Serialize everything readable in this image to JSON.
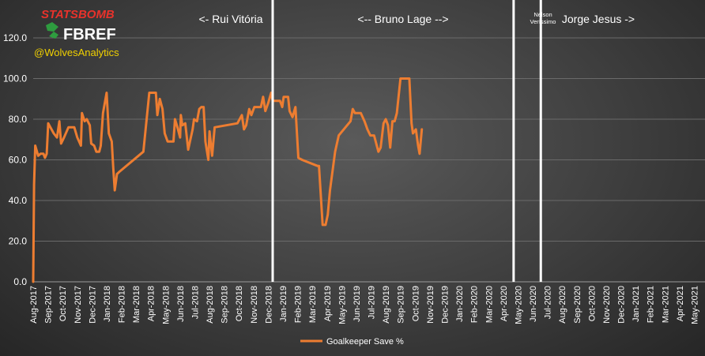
{
  "branding": {
    "statsbomb": "STATSBOMB",
    "fbref": "FBREF",
    "handle": "@WolvesAnalytics"
  },
  "colors": {
    "line": "#ed7d31",
    "grid": "#6a6a6a",
    "divider": "#ffffff",
    "handle": "#f0d000",
    "statsbomb": "#e8322b"
  },
  "chart_data": {
    "type": "line",
    "title": "",
    "xlabel": "",
    "ylabel": "",
    "ylim": [
      0,
      120
    ],
    "yticks": [
      "0.0",
      "20.0",
      "40.0",
      "60.0",
      "80.0",
      "100.0",
      "120.0"
    ],
    "grid": true,
    "legend": {
      "position": "bottom-center",
      "entries": [
        "Goalkeeper Save %"
      ]
    },
    "x_tick_labels": [
      "Aug-2017",
      "Sep-2017",
      "Oct-2017",
      "Nov-2017",
      "Dec-2017",
      "Jan-2018",
      "Feb-2018",
      "Mar-2018",
      "Apr-2018",
      "May-2018",
      "Jun-2018",
      "Jul-2018",
      "Aug-2018",
      "Sep-2018",
      "Oct-2018",
      "Nov-2018",
      "Dec-2018",
      "Jan-2019",
      "Feb-2019",
      "Mar-2019",
      "Apr-2019",
      "May-2019",
      "Jun-2019",
      "Jul-2019",
      "Aug-2019",
      "Sep-2019",
      "Oct-2019",
      "Nov-2019",
      "Dec-2019",
      "Jan-2020",
      "Feb-2020",
      "Mar-2020",
      "Apr-2020",
      "May-2020",
      "Jun-2020",
      "Jul-2020",
      "Aug-2020",
      "Sep-2020",
      "Oct-2020",
      "Nov-2020",
      "Dec-2020",
      "Jan-2021",
      "Feb-2021",
      "Mar-2021",
      "Apr-2021",
      "May-2021"
    ],
    "managers": [
      {
        "label": "<- Rui Vitória",
        "small": false
      },
      {
        "label": "<-- Bruno Lage -->",
        "small": false
      },
      {
        "label": "Nélson Veríssimo",
        "small": true
      },
      {
        "label": "Jorge Jesus ->",
        "small": false
      }
    ],
    "dividers": [
      16.3,
      32.7,
      34.55
    ],
    "series": [
      {
        "name": "Goalkeeper Save %",
        "points": [
          [
            0.0,
            0
          ],
          [
            0.06,
            48
          ],
          [
            0.14,
            67
          ],
          [
            0.34,
            62
          ],
          [
            0.5,
            63
          ],
          [
            0.7,
            63
          ],
          [
            0.8,
            61
          ],
          [
            0.92,
            63
          ],
          [
            1.02,
            78
          ],
          [
            1.4,
            73
          ],
          [
            1.62,
            71
          ],
          [
            1.78,
            79
          ],
          [
            1.9,
            68
          ],
          [
            2.1,
            71
          ],
          [
            2.4,
            76
          ],
          [
            2.8,
            76
          ],
          [
            3.0,
            71
          ],
          [
            3.25,
            67
          ],
          [
            3.32,
            83
          ],
          [
            3.5,
            79
          ],
          [
            3.65,
            80
          ],
          [
            3.85,
            77
          ],
          [
            3.95,
            68
          ],
          [
            4.15,
            67
          ],
          [
            4.3,
            64
          ],
          [
            4.5,
            64
          ],
          [
            4.6,
            67
          ],
          [
            4.75,
            83
          ],
          [
            5.0,
            93
          ],
          [
            5.15,
            73
          ],
          [
            5.35,
            69
          ],
          [
            5.45,
            56
          ],
          [
            5.55,
            45
          ],
          [
            5.7,
            53
          ],
          [
            5.85,
            54
          ],
          [
            7.5,
            64
          ],
          [
            7.9,
            93
          ],
          [
            8.35,
            93
          ],
          [
            8.45,
            82
          ],
          [
            8.62,
            90
          ],
          [
            8.8,
            85
          ],
          [
            8.95,
            73
          ],
          [
            9.15,
            69
          ],
          [
            9.55,
            69
          ],
          [
            9.65,
            80
          ],
          [
            9.82,
            76
          ],
          [
            10.0,
            71
          ],
          [
            10.05,
            82
          ],
          [
            10.15,
            77
          ],
          [
            10.35,
            78
          ],
          [
            10.55,
            65
          ],
          [
            10.85,
            75
          ],
          [
            10.95,
            80
          ],
          [
            11.15,
            79
          ],
          [
            11.3,
            85
          ],
          [
            11.45,
            86
          ],
          [
            11.6,
            86
          ],
          [
            11.72,
            69
          ],
          [
            11.92,
            60
          ],
          [
            12.0,
            74
          ],
          [
            12.18,
            62
          ],
          [
            12.35,
            76
          ],
          [
            13.9,
            78
          ],
          [
            14.2,
            82
          ],
          [
            14.35,
            75
          ],
          [
            14.5,
            77
          ],
          [
            14.7,
            85
          ],
          [
            14.85,
            82
          ],
          [
            15.05,
            86
          ],
          [
            15.25,
            86
          ],
          [
            15.5,
            86
          ],
          [
            15.65,
            91
          ],
          [
            15.8,
            84
          ],
          [
            16.0,
            88
          ],
          [
            16.2,
            93
          ],
          [
            16.3,
            89
          ],
          [
            16.8,
            89
          ],
          [
            16.95,
            86
          ],
          [
            17.05,
            91
          ],
          [
            17.35,
            91
          ],
          [
            17.45,
            84
          ],
          [
            17.65,
            81
          ],
          [
            17.85,
            86
          ],
          [
            18.05,
            61
          ],
          [
            18.3,
            60
          ],
          [
            19.35,
            57
          ],
          [
            19.45,
            57
          ],
          [
            19.7,
            28
          ],
          [
            19.9,
            28
          ],
          [
            20.05,
            33
          ],
          [
            20.2,
            45
          ],
          [
            20.55,
            64
          ],
          [
            20.8,
            72
          ],
          [
            21.6,
            79
          ],
          [
            21.75,
            85
          ],
          [
            21.9,
            83
          ],
          [
            22.3,
            83
          ],
          [
            22.55,
            79
          ],
          [
            22.75,
            75
          ],
          [
            22.95,
            72
          ],
          [
            23.2,
            72
          ],
          [
            23.5,
            64
          ],
          [
            23.65,
            66
          ],
          [
            23.85,
            78
          ],
          [
            24.0,
            80
          ],
          [
            24.15,
            77
          ],
          [
            24.3,
            66
          ],
          [
            24.45,
            79
          ],
          [
            24.6,
            79
          ],
          [
            24.75,
            83
          ],
          [
            25.0,
            100
          ],
          [
            25.6,
            100
          ],
          [
            25.75,
            78
          ],
          [
            25.85,
            73
          ],
          [
            26.05,
            75
          ],
          [
            26.2,
            67
          ],
          [
            26.3,
            63
          ],
          [
            26.45,
            75
          ]
        ]
      }
    ]
  }
}
